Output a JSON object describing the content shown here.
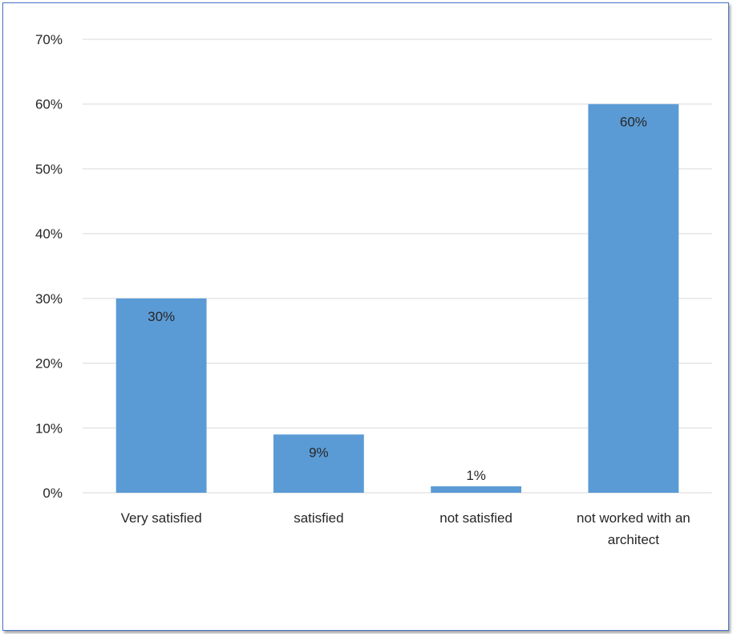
{
  "chart_data": {
    "type": "bar",
    "title": "",
    "xlabel": "",
    "ylabel": "",
    "categories": [
      [
        "Very satisfied"
      ],
      [
        "satisfied"
      ],
      [
        "not satisfied"
      ],
      [
        "not worked with an",
        "architect"
      ]
    ],
    "values": [
      30,
      9,
      1,
      60
    ],
    "data_labels": [
      "30%",
      "9%",
      "1%",
      "60%"
    ],
    "y_ticks": [
      "0%",
      "10%",
      "20%",
      "30%",
      "40%",
      "50%",
      "60%",
      "70%"
    ],
    "ylim": [
      0,
      70
    ],
    "grid": true,
    "legend": "none",
    "colors": {
      "bar": "#5b9bd5",
      "grid": "#d9d9d9",
      "text": "#262626",
      "frame": "#4472c4"
    }
  }
}
